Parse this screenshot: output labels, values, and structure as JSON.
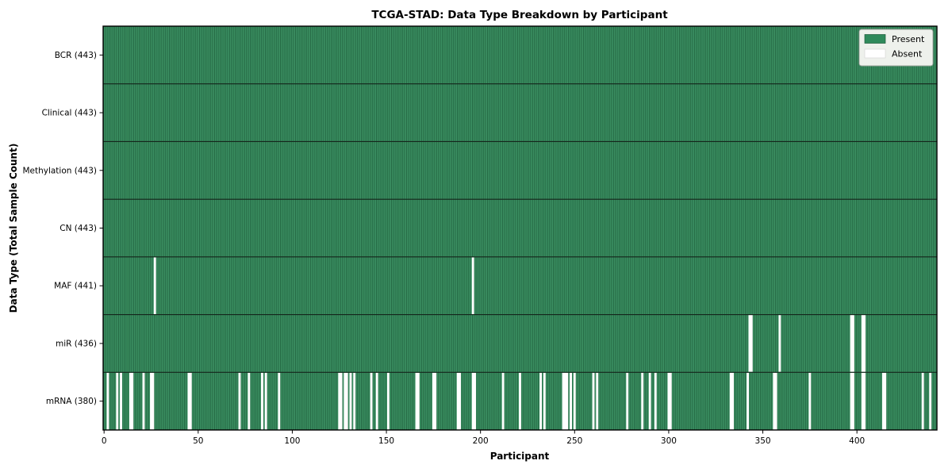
{
  "chart_data": {
    "type": "heatmap",
    "title": "TCGA-STAD: Data Type Breakdown by Participant",
    "xlabel": "Participant",
    "ylabel": "Data Type (Total Sample Count)",
    "participants_total": 443,
    "x_axis": {
      "min": 0,
      "max": 442,
      "tick_interval": 50,
      "ticks": [
        0,
        50,
        100,
        150,
        200,
        250,
        300,
        350,
        400
      ]
    },
    "legend": [
      {
        "label": "Present",
        "color": "#2f8a5b"
      },
      {
        "label": "Absent",
        "color": "#ffffff"
      }
    ],
    "legend_position": "upper right",
    "rows": [
      {
        "label": "BCR (443)",
        "data_type": "BCR",
        "sample_count": 443,
        "absent_participants": []
      },
      {
        "label": "Clinical (443)",
        "data_type": "Clinical",
        "sample_count": 443,
        "absent_participants": []
      },
      {
        "label": "Methylation (443)",
        "data_type": "Methylation",
        "sample_count": 443,
        "absent_participants": []
      },
      {
        "label": "CN (443)",
        "data_type": "CN",
        "sample_count": 443,
        "absent_participants": []
      },
      {
        "label": "MAF (441)",
        "data_type": "MAF",
        "sample_count": 441,
        "absent_participants": [
          27,
          196
        ]
      },
      {
        "label": "miR (436)",
        "data_type": "miR",
        "sample_count": 436,
        "absent_participants": [
          343,
          344,
          359,
          397,
          398,
          403,
          404
        ]
      },
      {
        "label": "mRNA (380)",
        "data_type": "mRNA",
        "sample_count": 380,
        "absent_participants": [
          2,
          7,
          9,
          14,
          15,
          21,
          25,
          26,
          45,
          46,
          72,
          77,
          84,
          86,
          93,
          125,
          126,
          128,
          129,
          131,
          133,
          142,
          145,
          151,
          166,
          167,
          175,
          176,
          188,
          189,
          196,
          197,
          212,
          221,
          232,
          234,
          244,
          245,
          246,
          248,
          250,
          260,
          262,
          278,
          286,
          290,
          293,
          300,
          301,
          333,
          334,
          342,
          356,
          357,
          375,
          397,
          398,
          403,
          404,
          414,
          415,
          435,
          439
        ]
      }
    ]
  },
  "colors": {
    "present_fill": "#3c9163",
    "cell_edge": "#1d5c3a",
    "absent_fill": "#ffffff",
    "row_divider": "#14251b",
    "plot_border": "#000000",
    "legend_bg": "#eef1ec",
    "legend_border": "#9aa29a",
    "absent_swatch_edge": "#d8d8d8",
    "text": "#000000"
  }
}
